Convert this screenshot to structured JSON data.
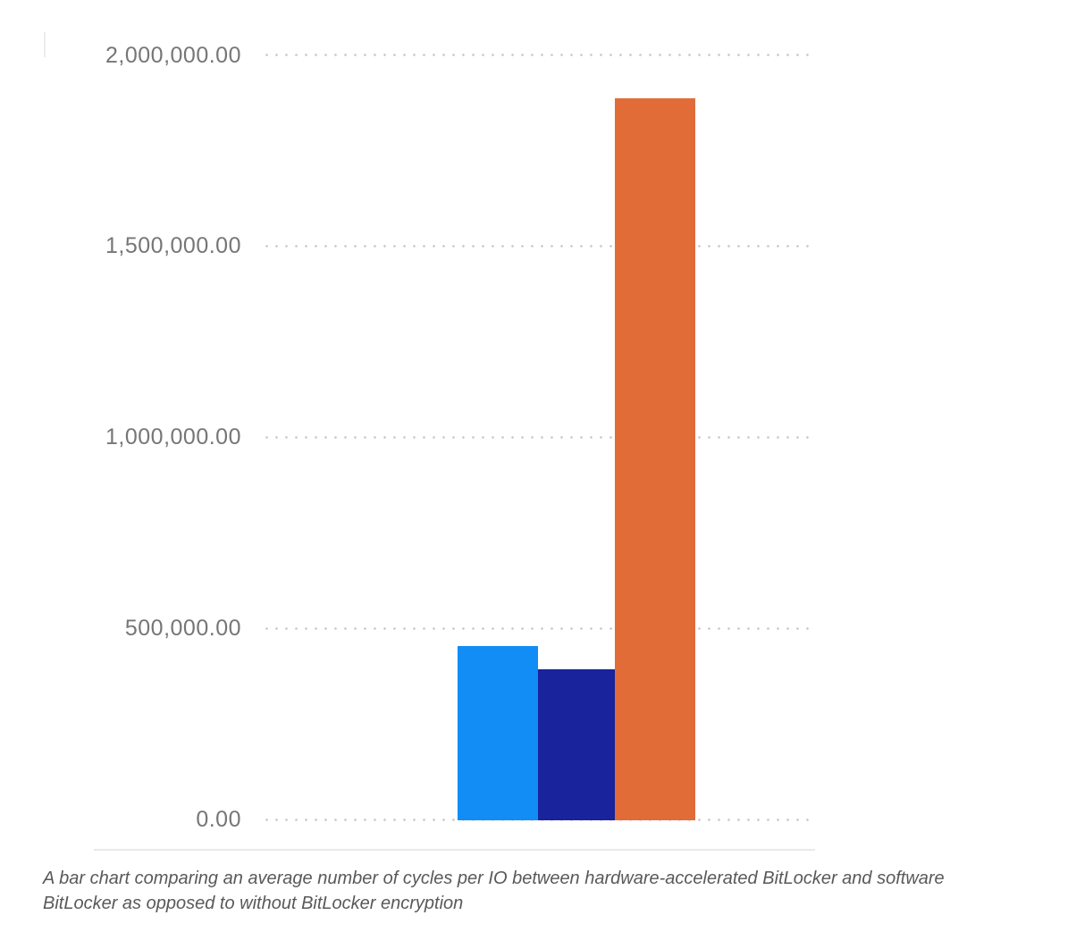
{
  "figure": {
    "caption": {
      "lines": [
        "A bar chart comparing an average number of cycles per IO between hardware-accelerated BitLocker and software",
        "BitLocker as opposed to without BitLocker encryption"
      ]
    }
  },
  "chart_data": {
    "type": "bar",
    "title": "",
    "xlabel": "",
    "ylabel": "",
    "ylim": [
      0,
      2000000
    ],
    "grid": "horizontal-dotted",
    "legend_position": "none",
    "x_axis_labels": "none",
    "yticks": [
      {
        "value": 2000000,
        "label": "2,000,000.00"
      },
      {
        "value": 1500000,
        "label": "1,500,000.00"
      },
      {
        "value": 1000000,
        "label": "1,000,000.00"
      },
      {
        "value": 500000,
        "label": "500,000.00"
      },
      {
        "value": 0,
        "label": "0.00"
      }
    ],
    "bars": [
      {
        "value": 456000,
        "color": "#118df5"
      },
      {
        "value": 395000,
        "color": "#18239c"
      },
      {
        "value": 1888000,
        "color": "#e16c38"
      }
    ],
    "palette": {
      "tick_label": "#767676",
      "grid_dot": "#c6c6c6",
      "baseline": "#e9e9e9",
      "caption_text": "#595959"
    }
  }
}
